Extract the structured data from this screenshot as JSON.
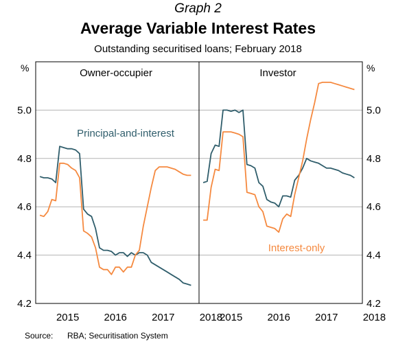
{
  "graph_label": "Graph 2",
  "title": "Average Variable Interest Rates",
  "subtitle": "Outstanding securitised loans; February 2018",
  "source": {
    "label": "Source:",
    "text": "RBA; Securitisation System"
  },
  "colors": {
    "principal_and_interest": "#2f5d6b",
    "interest_only": "#f5893f",
    "grid": "#b3b3b3",
    "frame": "#000000"
  },
  "chart_data": [
    {
      "type": "line",
      "panel_title": "Owner-occupier",
      "ylabel": "%",
      "ylim": [
        4.2,
        5.2
      ],
      "yticks": [
        "4.2",
        "4.4",
        "4.6",
        "4.8",
        "5.0"
      ],
      "xlim": [
        2014.83,
        2018.25
      ],
      "xticks": [
        "2015",
        "2016",
        "2017",
        "2018"
      ],
      "grid": true,
      "series": [
        {
          "name": "Principal-and-interest",
          "x": [
            2014.917,
            2015.0,
            2015.083,
            2015.167,
            2015.25,
            2015.333,
            2015.417,
            2015.5,
            2015.583,
            2015.667,
            2015.75,
            2015.833,
            2015.917,
            2016.0,
            2016.083,
            2016.167,
            2016.25,
            2016.333,
            2016.417,
            2016.5,
            2016.583,
            2016.667,
            2016.75,
            2016.833,
            2016.917,
            2017.0,
            2017.083,
            2017.167,
            2017.25,
            2017.333,
            2017.417,
            2017.5,
            2017.583,
            2017.667,
            2017.75,
            2017.833,
            2017.917,
            2018.0,
            2018.083
          ],
          "y": [
            4.725,
            4.72,
            4.72,
            4.715,
            4.7,
            4.85,
            4.845,
            4.84,
            4.84,
            4.835,
            4.82,
            4.59,
            4.57,
            4.56,
            4.51,
            4.43,
            4.42,
            4.42,
            4.415,
            4.4,
            4.41,
            4.41,
            4.395,
            4.41,
            4.4,
            4.41,
            4.41,
            4.4,
            4.37,
            4.36,
            4.35,
            4.34,
            4.33,
            4.32,
            4.31,
            4.3,
            4.285,
            4.28,
            4.275
          ]
        },
        {
          "name": "Interest-only",
          "x": [
            2014.917,
            2015.0,
            2015.083,
            2015.167,
            2015.25,
            2015.333,
            2015.417,
            2015.5,
            2015.583,
            2015.667,
            2015.75,
            2015.833,
            2015.917,
            2016.0,
            2016.083,
            2016.167,
            2016.25,
            2016.333,
            2016.417,
            2016.5,
            2016.583,
            2016.667,
            2016.75,
            2016.833,
            2016.917,
            2017.0,
            2017.083,
            2017.167,
            2017.25,
            2017.333,
            2017.417,
            2017.5,
            2017.583,
            2017.667,
            2017.75,
            2017.833,
            2017.917,
            2018.0,
            2018.083
          ],
          "y": [
            4.565,
            4.56,
            4.58,
            4.63,
            4.625,
            4.78,
            4.78,
            4.775,
            4.76,
            4.75,
            4.72,
            4.5,
            4.49,
            4.475,
            4.43,
            4.35,
            4.34,
            4.34,
            4.32,
            4.35,
            4.35,
            4.33,
            4.35,
            4.35,
            4.4,
            4.42,
            4.52,
            4.6,
            4.68,
            4.75,
            4.765,
            4.765,
            4.765,
            4.76,
            4.755,
            4.745,
            4.735,
            4.73,
            4.73
          ]
        }
      ],
      "annotations": [
        "Principal-and-interest"
      ]
    },
    {
      "type": "line",
      "panel_title": "Investor",
      "ylabel": "%",
      "ylim": [
        4.2,
        5.2
      ],
      "yticks": [
        "4.2",
        "4.4",
        "4.6",
        "4.8",
        "5.0"
      ],
      "xlim": [
        2014.83,
        2018.25
      ],
      "xticks": [
        "2015",
        "2016",
        "2017",
        "2018"
      ],
      "grid": true,
      "series": [
        {
          "name": "Principal-and-interest",
          "x": [
            2014.917,
            2015.0,
            2015.083,
            2015.167,
            2015.25,
            2015.333,
            2015.417,
            2015.5,
            2015.583,
            2015.667,
            2015.75,
            2015.833,
            2015.917,
            2016.0,
            2016.083,
            2016.167,
            2016.25,
            2016.333,
            2016.417,
            2016.5,
            2016.583,
            2016.667,
            2016.75,
            2016.833,
            2016.917,
            2017.0,
            2017.083,
            2017.167,
            2017.25,
            2017.333,
            2017.417,
            2017.5,
            2017.583,
            2017.667,
            2017.75,
            2017.833,
            2017.917,
            2018.0,
            2018.083
          ],
          "y": [
            4.7,
            4.705,
            4.82,
            4.855,
            4.85,
            5.0,
            5.0,
            4.995,
            5.0,
            4.99,
            5.0,
            4.775,
            4.77,
            4.76,
            4.7,
            4.685,
            4.63,
            4.62,
            4.615,
            4.6,
            4.645,
            4.645,
            4.64,
            4.71,
            4.73,
            4.76,
            4.8,
            4.79,
            4.785,
            4.78,
            4.77,
            4.76,
            4.76,
            4.755,
            4.75,
            4.74,
            4.735,
            4.73,
            4.72
          ]
        },
        {
          "name": "Interest-only",
          "x": [
            2014.917,
            2015.0,
            2015.083,
            2015.167,
            2015.25,
            2015.333,
            2015.417,
            2015.5,
            2015.583,
            2015.667,
            2015.75,
            2015.833,
            2015.917,
            2016.0,
            2016.083,
            2016.167,
            2016.25,
            2016.333,
            2016.417,
            2016.5,
            2016.583,
            2016.667,
            2016.75,
            2016.833,
            2016.917,
            2017.0,
            2017.083,
            2017.167,
            2017.25,
            2017.333,
            2017.417,
            2017.5,
            2017.583,
            2017.667,
            2017.75,
            2017.833,
            2017.917,
            2018.0,
            2018.083
          ],
          "y": [
            4.545,
            4.545,
            4.68,
            4.755,
            4.75,
            4.91,
            4.91,
            4.91,
            4.905,
            4.9,
            4.89,
            4.66,
            4.655,
            4.65,
            4.6,
            4.58,
            4.52,
            4.515,
            4.51,
            4.495,
            4.55,
            4.57,
            4.56,
            4.65,
            4.72,
            4.79,
            4.88,
            4.96,
            5.03,
            5.11,
            5.115,
            5.115,
            5.115,
            5.11,
            5.105,
            5.1,
            5.095,
            5.09,
            5.085
          ]
        }
      ],
      "annotations": [
        "Interest-only"
      ]
    }
  ]
}
